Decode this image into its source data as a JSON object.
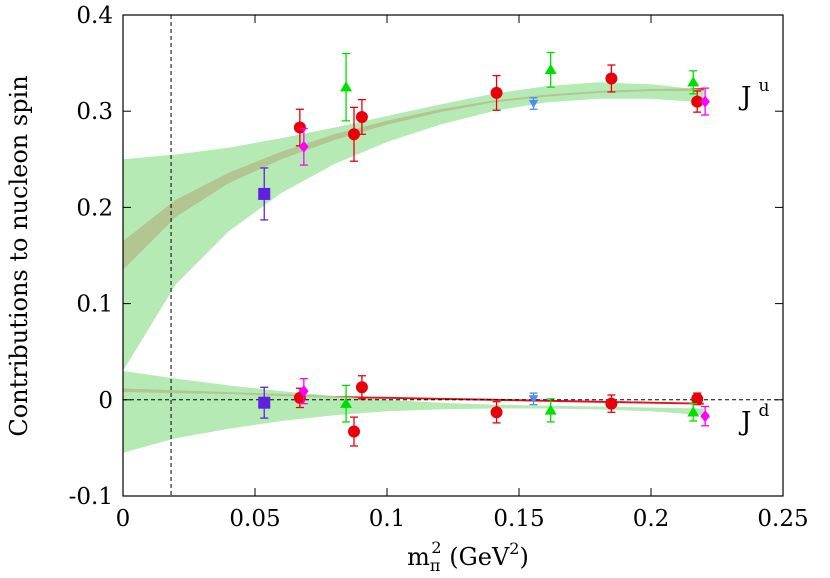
{
  "chart_data": {
    "type": "scatter",
    "title": "",
    "xlabel_main": "m",
    "xlabel_sub": "π",
    "xlabel_sup": "2",
    "xlabel_unit": " (GeV",
    "xlabel_unit_sup": "2",
    "xlabel_close": ")",
    "ylabel": "Contributions to nucleon spin",
    "xlim": [
      0,
      0.25
    ],
    "ylim": [
      -0.1,
      0.4
    ],
    "xticks": [
      0,
      0.05,
      0.1,
      0.15,
      0.2,
      0.25
    ],
    "xtick_labels": [
      "0",
      "0.05",
      "0.1",
      "0.15",
      "0.2",
      "0.25"
    ],
    "yticks": [
      -0.1,
      0,
      0.1,
      0.2,
      0.3,
      0.4
    ],
    "ytick_labels": [
      "-0.1",
      "0",
      "0.1",
      "0.2",
      "0.3",
      "0.4"
    ],
    "vline_x": 0.0182,
    "hline_y": 0,
    "colors": {
      "red": "#e8000b",
      "green": "#00e000",
      "blue": "#4a8ef0",
      "magenta": "#ff00ff",
      "purple": "#6020e0",
      "green_band": "#a8e6a8",
      "red_band": "#e8000b"
    },
    "labels": {
      "ju_main": "J",
      "ju_sup": "u",
      "jd_main": "J",
      "jd_sup": "d"
    },
    "bands": [
      {
        "id": "Ju-red",
        "color": "red",
        "x": [
          0,
          0.02,
          0.04,
          0.06,
          0.08,
          0.1,
          0.12,
          0.14,
          0.16,
          0.18,
          0.2,
          0.22
        ],
        "upper": [
          0.165,
          0.208,
          0.236,
          0.258,
          0.276,
          0.29,
          0.302,
          0.311,
          0.317,
          0.321,
          0.323,
          0.324
        ],
        "lower": [
          0.135,
          0.19,
          0.225,
          0.25,
          0.27,
          0.286,
          0.299,
          0.309,
          0.315,
          0.319,
          0.321,
          0.321
        ]
      },
      {
        "id": "Ju-green",
        "color": "green_band",
        "x": [
          0,
          0.02,
          0.04,
          0.06,
          0.08,
          0.1,
          0.12,
          0.14,
          0.16,
          0.18,
          0.2,
          0.22
        ],
        "upper": [
          0.25,
          0.255,
          0.262,
          0.272,
          0.283,
          0.295,
          0.307,
          0.318,
          0.326,
          0.33,
          0.328,
          0.322
        ],
        "lower": [
          0.03,
          0.12,
          0.175,
          0.215,
          0.245,
          0.268,
          0.286,
          0.3,
          0.309,
          0.313,
          0.313,
          0.309
        ]
      },
      {
        "id": "Jd-red",
        "color": "red",
        "x": [
          0,
          0.02,
          0.04,
          0.06,
          0.08,
          0.1,
          0.12,
          0.14,
          0.16,
          0.18,
          0.2,
          0.22
        ],
        "upper": [
          0.012,
          0.01,
          0.008,
          0.006,
          0.004,
          0.003,
          0.002,
          0.001,
          0.0,
          -0.001,
          -0.002,
          -0.003
        ],
        "lower": [
          0.008,
          0.007,
          0.006,
          0.004,
          0.002,
          0.001,
          0.0,
          -0.001,
          -0.002,
          -0.003,
          -0.004,
          -0.005
        ]
      },
      {
        "id": "Jd-green",
        "color": "green_band",
        "x": [
          0,
          0.02,
          0.04,
          0.06,
          0.08,
          0.1,
          0.12,
          0.14,
          0.16,
          0.18,
          0.2,
          0.22
        ],
        "upper": [
          0.03,
          0.022,
          0.015,
          0.009,
          0.004,
          0.0,
          -0.003,
          -0.005,
          -0.006,
          -0.007,
          -0.008,
          -0.009
        ],
        "lower": [
          -0.055,
          -0.04,
          -0.03,
          -0.022,
          -0.016,
          -0.012,
          -0.01,
          -0.009,
          -0.009,
          -0.01,
          -0.012,
          -0.016
        ]
      }
    ],
    "series": [
      {
        "marker": "circle",
        "color": "red",
        "points": [
          {
            "x": 0.067,
            "y": 0.283,
            "err": 0.019
          },
          {
            "x": 0.0875,
            "y": 0.276,
            "err": 0.028
          },
          {
            "x": 0.0905,
            "y": 0.294,
            "err": 0.018
          },
          {
            "x": 0.1415,
            "y": 0.319,
            "err": 0.018
          },
          {
            "x": 0.185,
            "y": 0.334,
            "err": 0.014
          },
          {
            "x": 0.2175,
            "y": 0.31,
            "err": 0.011
          },
          {
            "x": 0.067,
            "y": 0.002,
            "err": 0.01
          },
          {
            "x": 0.0875,
            "y": -0.033,
            "err": 0.015
          },
          {
            "x": 0.0905,
            "y": 0.013,
            "err": 0.012
          },
          {
            "x": 0.1415,
            "y": -0.013,
            "err": 0.011
          },
          {
            "x": 0.185,
            "y": -0.004,
            "err": 0.009
          },
          {
            "x": 0.2175,
            "y": 0.001,
            "err": 0.006
          }
        ]
      },
      {
        "marker": "triangle-up",
        "color": "green",
        "points": [
          {
            "x": 0.0845,
            "y": 0.325,
            "err": 0.035
          },
          {
            "x": 0.162,
            "y": 0.343,
            "err": 0.018
          },
          {
            "x": 0.216,
            "y": 0.33,
            "err": 0.012
          },
          {
            "x": 0.0845,
            "y": -0.004,
            "err": 0.019
          },
          {
            "x": 0.162,
            "y": -0.011,
            "err": 0.012
          },
          {
            "x": 0.216,
            "y": -0.013,
            "err": 0.009
          }
        ]
      },
      {
        "marker": "diamond",
        "color": "magenta",
        "points": [
          {
            "x": 0.0685,
            "y": 0.263,
            "err": 0.019
          },
          {
            "x": 0.2205,
            "y": 0.31,
            "err": 0.014
          },
          {
            "x": 0.0685,
            "y": 0.009,
            "err": 0.013
          },
          {
            "x": 0.2205,
            "y": -0.017,
            "err": 0.01
          }
        ]
      },
      {
        "marker": "triangle-down",
        "color": "blue",
        "points": [
          {
            "x": 0.1555,
            "y": 0.308,
            "err": 0.006
          },
          {
            "x": 0.1555,
            "y": 0.001,
            "err": 0.006
          }
        ]
      },
      {
        "marker": "square",
        "color": "purple",
        "points": [
          {
            "x": 0.0535,
            "y": 0.214,
            "err": 0.027
          },
          {
            "x": 0.0535,
            "y": -0.003,
            "err": 0.016
          }
        ]
      }
    ]
  }
}
